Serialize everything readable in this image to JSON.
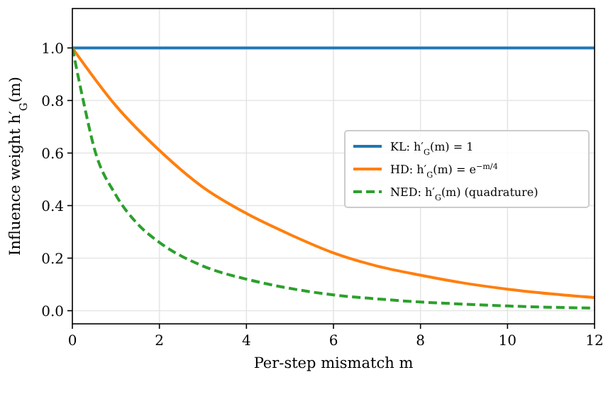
{
  "chart_data": {
    "type": "line",
    "xlabel": "Per-step mismatch m",
    "ylabel": "Influence weight h′$_{G}$(m)",
    "xlim": [
      0,
      12
    ],
    "ylim": [
      -0.05,
      1.15
    ],
    "xticks": [
      0,
      2,
      4,
      6,
      8,
      10,
      12
    ],
    "yticks": [
      {
        "value": 0,
        "label": "0.0"
      },
      0.2,
      0.4,
      0.6,
      0.8,
      {
        "value": 1,
        "label": "1.0"
      }
    ],
    "grid": true,
    "legend": "right",
    "series": [
      {
        "name": "KL: h′$_{G}$(m) = 1",
        "color": "#1f77b4",
        "line_style": "solid",
        "x": [
          0,
          12
        ],
        "values": [
          1,
          1
        ]
      },
      {
        "name": "HD: h′$_{G}$(m) = e$^{−m/4}$",
        "color": "#ff7f0e",
        "line_style": "solid",
        "x": [
          0,
          1,
          2,
          3,
          4,
          5,
          6,
          7,
          8,
          9,
          10,
          11,
          12
        ],
        "values": [
          1,
          0.78,
          0.61,
          0.47,
          0.37,
          0.29,
          0.22,
          0.17,
          0.135,
          0.105,
          0.082,
          0.064,
          0.05
        ]
      },
      {
        "name": "NED: h′$_{G}$(m) (quadrature)",
        "color": "#2ca02c",
        "line_style": "dashed",
        "x": [
          0,
          0.25,
          0.5,
          1,
          1.5,
          2,
          3,
          4,
          5,
          6,
          7,
          8,
          9,
          10,
          11,
          12
        ],
        "values": [
          1,
          0.8,
          0.62,
          0.44,
          0.33,
          0.26,
          0.17,
          0.12,
          0.085,
          0.06,
          0.045,
          0.033,
          0.025,
          0.018,
          0.013,
          0.01
        ]
      }
    ]
  }
}
